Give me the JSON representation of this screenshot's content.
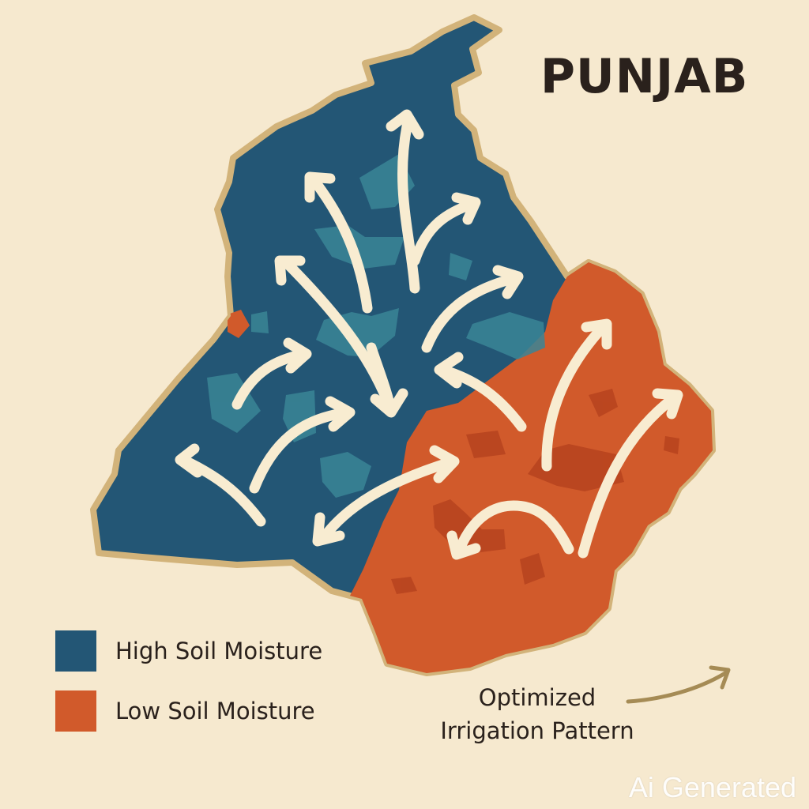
{
  "map": {
    "title": "PUNJAB",
    "colors": {
      "background": "#f6e9cf",
      "high_moisture": "#235675",
      "high_moisture_patch": "#3a8596",
      "low_moisture": "#d15a2b",
      "low_moisture_patch": "#b8441f",
      "border": "#d2b37a",
      "arrow": "#f8ecd1",
      "flow_arrow": "#a58b55"
    },
    "arrow_icon": "flow-arrow-icon",
    "flow_arrow_annotation": "curved-arrow-icon"
  },
  "legend": {
    "items": [
      {
        "label": "High Soil Moisture",
        "color": "#235675"
      },
      {
        "label": "Low Soil Moisture",
        "color": "#d15a2b"
      }
    ]
  },
  "annotation": {
    "line1": "Optimized",
    "line2": "Irrigation Pattern"
  },
  "watermark": "Ai Generated"
}
